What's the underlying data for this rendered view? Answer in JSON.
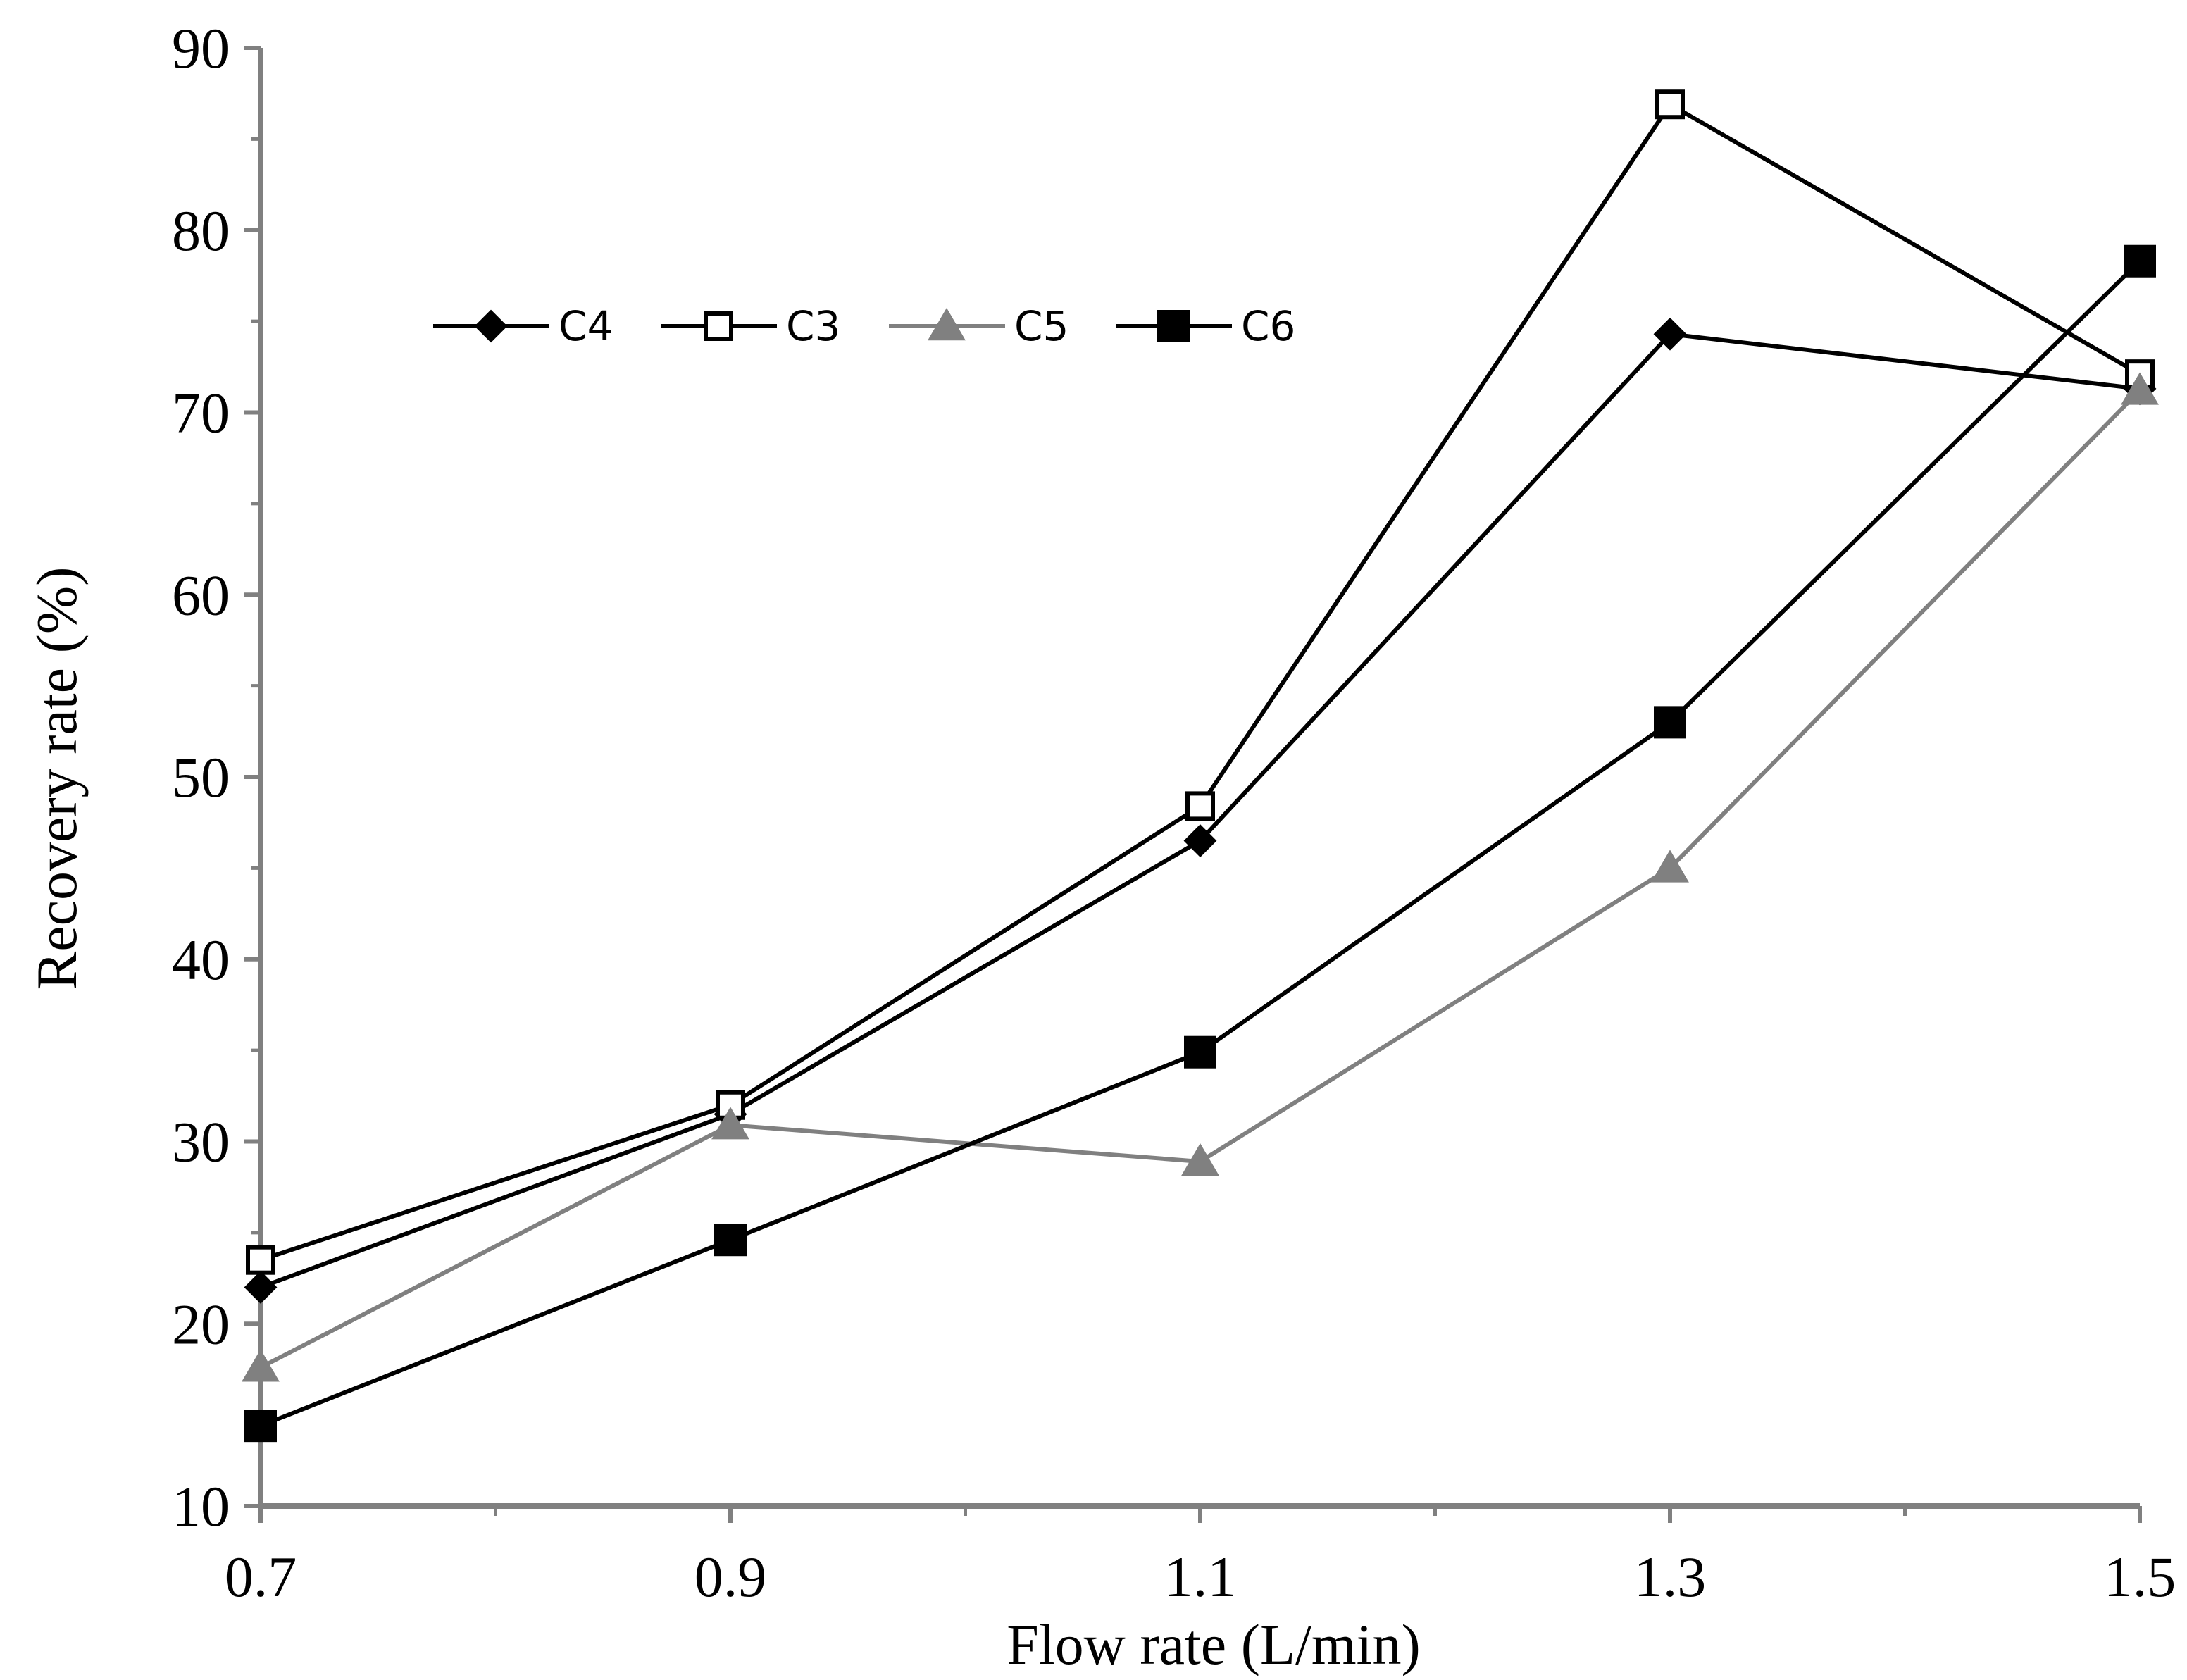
{
  "chart_data": {
    "type": "line",
    "title": "",
    "xlabel": "Flow rate (L/min)",
    "ylabel": "Recovery rate (%)",
    "x": [
      0.7,
      0.9,
      1.1,
      1.3,
      1.5
    ],
    "x_tick_labels": [
      "0.7",
      "0.9",
      "1.1",
      "1.3",
      "1.5"
    ],
    "xlim": [
      0.7,
      1.5
    ],
    "ylim": [
      10,
      90
    ],
    "y_ticks": [
      10,
      20,
      30,
      40,
      50,
      60,
      70,
      80,
      90
    ],
    "y_tick_labels": [
      "10",
      "20",
      "30",
      "40",
      "50",
      "60",
      "70",
      "80",
      "90"
    ],
    "grid": false,
    "legend_position": "top-left",
    "series": [
      {
        "name": "C4",
        "values": [
          22,
          31.5,
          46.5,
          74.3,
          71.3
        ],
        "marker": "diamond",
        "color": "#000000",
        "fill": "#000000"
      },
      {
        "name": "C3",
        "values": [
          23.5,
          32,
          48.4,
          86.9,
          72.1
        ],
        "marker": "square-open",
        "color": "#000000",
        "fill": "#ffffff"
      },
      {
        "name": "C5",
        "values": [
          17.6,
          30.9,
          28.9,
          45,
          71.2
        ],
        "marker": "triangle",
        "color": "#808080",
        "fill": "#808080"
      },
      {
        "name": "C6",
        "values": [
          14.4,
          24.6,
          34.9,
          53,
          78.3
        ],
        "marker": "square",
        "color": "#000000",
        "fill": "#000000"
      }
    ],
    "axis_color": "#808080"
  }
}
